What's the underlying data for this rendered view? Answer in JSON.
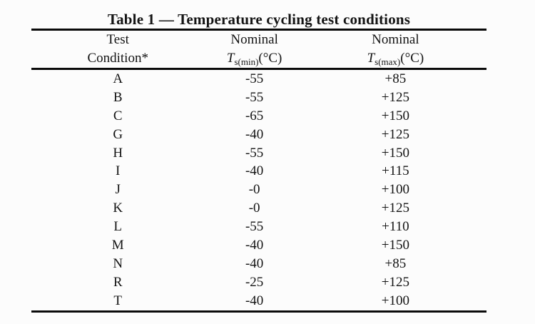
{
  "table": {
    "title": "Table 1 — Temperature cycling test conditions",
    "columns": [
      {
        "line1": "Test",
        "line2": "Condition*"
      },
      {
        "line1": "Nominal",
        "symbol": "T",
        "subscript": "s(min)",
        "unit": "(°C)"
      },
      {
        "line1": "Nominal",
        "symbol": "T",
        "subscript": "s(max)",
        "unit": "(°C)"
      }
    ],
    "rows": [
      {
        "condition": "A",
        "tmin": "-55",
        "tmax": "+85"
      },
      {
        "condition": "B",
        "tmin": "-55",
        "tmax": "+125"
      },
      {
        "condition": "C",
        "tmin": "-65",
        "tmax": "+150"
      },
      {
        "condition": "G",
        "tmin": "-40",
        "tmax": "+125"
      },
      {
        "condition": "H",
        "tmin": "-55",
        "tmax": "+150"
      },
      {
        "condition": "I",
        "tmin": "-40",
        "tmax": "+115"
      },
      {
        "condition": "J",
        "tmin": "-0",
        "tmax": "+100"
      },
      {
        "condition": "K",
        "tmin": "-0",
        "tmax": "+125"
      },
      {
        "condition": "L",
        "tmin": "-55",
        "tmax": "+110"
      },
      {
        "condition": "M",
        "tmin": "-40",
        "tmax": "+150"
      },
      {
        "condition": "N",
        "tmin": "-40",
        "tmax": "+85"
      },
      {
        "condition": "R",
        "tmin": "-25",
        "tmax": "+125"
      },
      {
        "condition": "T",
        "tmin": "-40",
        "tmax": "+100"
      }
    ],
    "rule_color": "#0a0a0a"
  }
}
